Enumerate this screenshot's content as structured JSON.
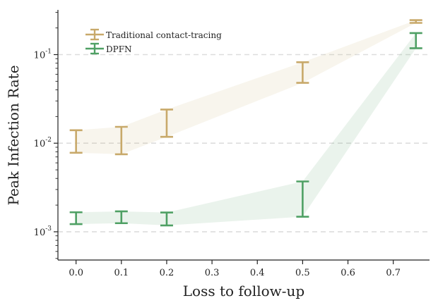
{
  "chart_data": {
    "type": "line",
    "title": "",
    "xlabel": "Loss to follow-up",
    "ylabel": "Peak Infection Rate",
    "yscale": "log",
    "xlim": [
      -0.04,
      0.78
    ],
    "ylim": [
      0.00048,
      0.32
    ],
    "x_ticks": [
      0.0,
      0.1,
      0.2,
      0.3,
      0.4,
      0.5,
      0.6,
      0.7
    ],
    "x_tick_labels": [
      "0.0",
      "0.1",
      "0.2",
      "0.3",
      "0.4",
      "0.5",
      "0.6",
      "0.7"
    ],
    "y_ticks": [
      0.001,
      0.01,
      0.1
    ],
    "y_tick_labels": [
      {
        "base": "10",
        "exp": "-3"
      },
      {
        "base": "10",
        "exp": "-2"
      },
      {
        "base": "10",
        "exp": "-1"
      }
    ],
    "grid": "horizontal dashed at major y ticks",
    "legend_position": "top-left",
    "series": [
      {
        "name": "Traditional contact-tracing",
        "color": "#c8a96a",
        "x": [
          0.0,
          0.1,
          0.2,
          0.5,
          0.75
        ],
        "lower": [
          0.0078,
          0.0075,
          0.0118,
          0.048,
          0.228
        ],
        "upper": [
          0.014,
          0.0153,
          0.024,
          0.082,
          0.245
        ]
      },
      {
        "name": "DPFN",
        "color": "#4fa064",
        "x": [
          0.0,
          0.1,
          0.2,
          0.5,
          0.75
        ],
        "lower": [
          0.00122,
          0.00125,
          0.00118,
          0.00148,
          0.118
        ],
        "upper": [
          0.00166,
          0.0017,
          0.00165,
          0.0037,
          0.175
        ]
      }
    ]
  }
}
